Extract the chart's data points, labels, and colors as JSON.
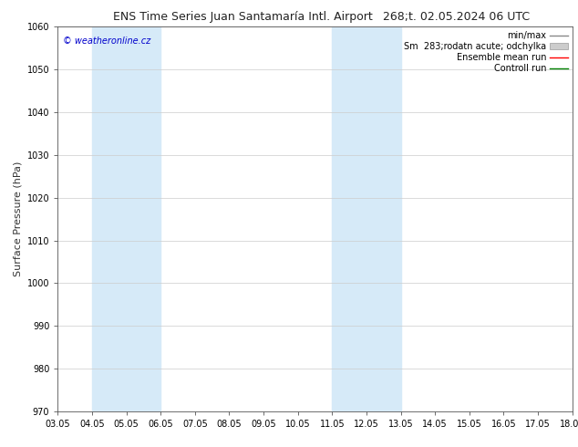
{
  "title_left": "ENS Time Series Juan Santamaría Intl. Airport",
  "title_right": "268;t. 02.05.2024 06 UTC",
  "ylabel": "Surface Pressure (hPa)",
  "ylim": [
    970,
    1060
  ],
  "yticks": [
    970,
    980,
    990,
    1000,
    1010,
    1020,
    1030,
    1040,
    1050,
    1060
  ],
  "xlim_start": 0,
  "xlim_end": 15,
  "xtick_labels": [
    "03.05",
    "04.05",
    "05.05",
    "06.05",
    "07.05",
    "08.05",
    "09.05",
    "10.05",
    "11.05",
    "12.05",
    "13.05",
    "14.05",
    "15.05",
    "16.05",
    "17.05",
    "18.05"
  ],
  "xtick_positions": [
    0,
    1,
    2,
    3,
    4,
    5,
    6,
    7,
    8,
    9,
    10,
    11,
    12,
    13,
    14,
    15
  ],
  "shade_bands": [
    {
      "xmin": 1.0,
      "xmax": 3.0
    },
    {
      "xmin": 8.0,
      "xmax": 10.0
    }
  ],
  "shade_color": "#d6eaf8",
  "watermark_text": "© weatheronline.cz",
  "watermark_color": "#0000cc",
  "bg_color": "#ffffff",
  "grid_color": "#cccccc",
  "title_fontsize": 9,
  "tick_fontsize": 7,
  "ylabel_fontsize": 8,
  "legend_fontsize": 7,
  "watermark_fontsize": 7
}
